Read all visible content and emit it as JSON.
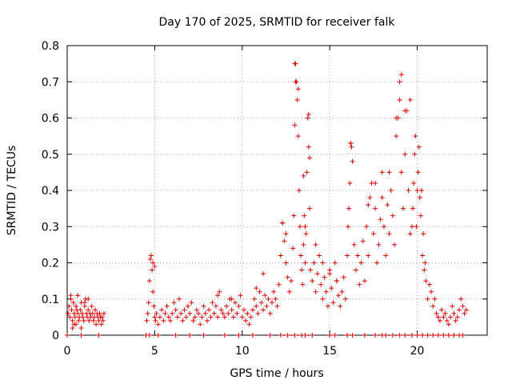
{
  "chart_data": {
    "type": "scatter",
    "title": "Day 170 of 2025, SRMTID for receiver falk",
    "xlabel": "GPS time / hours",
    "ylabel": "SRMTID / TECUs",
    "xlim": [
      0,
      24
    ],
    "ylim": [
      0,
      0.8
    ],
    "x_ticks": [
      0,
      5,
      10,
      15,
      20
    ],
    "y_ticks": [
      0,
      0.1,
      0.2,
      0.3,
      0.4,
      0.5,
      0.6,
      0.7,
      0.8
    ],
    "x_tick_labels": [
      "0",
      "5",
      "10",
      "15",
      "20"
    ],
    "y_tick_labels": [
      "0",
      "0.1",
      "0.2",
      "0.3",
      "0.4",
      "0.5",
      "0.6",
      "0.7",
      "0.8"
    ],
    "grid": true,
    "marker": "plus",
    "series_color": "#e00000",
    "series": [
      {
        "name": "SRMTID",
        "x": [
          0.05,
          0.1,
          0.15,
          0.2,
          0.25,
          0.3,
          0.35,
          0.4,
          0.45,
          0.5,
          0.55,
          0.6,
          0.65,
          0.7,
          0.75,
          0.8,
          0.85,
          0.9,
          0.95,
          1.0,
          1.05,
          1.1,
          1.15,
          1.2,
          1.25,
          1.3,
          1.35,
          1.4,
          1.45,
          1.5,
          1.55,
          1.6,
          1.65,
          1.7,
          1.75,
          1.8,
          1.85,
          1.9,
          1.95,
          2.0,
          2.05,
          2.1,
          0.2,
          0.4,
          0.6,
          0.8,
          1.0,
          1.2,
          0.3,
          0.5,
          4.55,
          4.6,
          4.65,
          4.7,
          4.75,
          4.8,
          4.85,
          4.9,
          4.95,
          5.0,
          5.05,
          5.1,
          5.2,
          5.3,
          5.4,
          5.5,
          5.6,
          5.7,
          5.8,
          5.9,
          6.0,
          6.1,
          6.2,
          6.3,
          6.4,
          6.5,
          6.6,
          6.7,
          6.8,
          6.9,
          7.0,
          7.1,
          7.2,
          7.3,
          7.4,
          7.5,
          7.6,
          7.7,
          7.8,
          7.9,
          8.0,
          8.1,
          8.2,
          8.3,
          8.4,
          8.5,
          8.6,
          8.7,
          8.8,
          8.9,
          9.0,
          9.1,
          9.2,
          9.3,
          9.4,
          9.5,
          9.6,
          9.7,
          9.8,
          9.9,
          10.0,
          10.1,
          10.2,
          10.3,
          10.4,
          10.5,
          10.6,
          10.7,
          10.8,
          10.9,
          11.0,
          11.1,
          11.2,
          11.3,
          11.4,
          11.5,
          11.6,
          11.7,
          11.8,
          11.9,
          12.0,
          12.1,
          12.2,
          12.3,
          12.4,
          12.5,
          12.6,
          12.7,
          12.8,
          12.9,
          12.95,
          13.0,
          13.05,
          13.1,
          13.15,
          13.2,
          13.25,
          13.3,
          13.35,
          13.4,
          13.45,
          13.5,
          13.55,
          13.6,
          13.65,
          13.7,
          13.75,
          13.8,
          13.85,
          13.9,
          14.0,
          14.1,
          14.2,
          14.3,
          14.4,
          14.5,
          14.6,
          14.7,
          14.8,
          14.9,
          15.0,
          15.1,
          15.2,
          15.3,
          15.4,
          15.5,
          15.6,
          15.7,
          15.8,
          15.9,
          16.0,
          16.05,
          16.1,
          16.15,
          16.2,
          16.3,
          16.4,
          16.5,
          16.6,
          16.7,
          16.8,
          16.9,
          17.0,
          17.1,
          17.2,
          17.3,
          17.4,
          17.5,
          17.6,
          17.7,
          17.8,
          17.9,
          18.0,
          18.1,
          18.2,
          18.3,
          18.4,
          18.5,
          18.6,
          18.7,
          18.8,
          18.9,
          19.0,
          19.1,
          19.2,
          19.3,
          19.4,
          19.5,
          19.6,
          19.7,
          19.75,
          19.8,
          19.85,
          19.9,
          19.95,
          20.0,
          20.05,
          20.1,
          20.15,
          20.2,
          20.25,
          20.3,
          20.35,
          20.4,
          20.45,
          20.5,
          20.6,
          20.7,
          20.8,
          20.9,
          21.0,
          21.1,
          21.2,
          21.3,
          21.4,
          21.5,
          21.6,
          21.7,
          21.8,
          21.9,
          22.0,
          22.1,
          22.2,
          22.3,
          22.4,
          22.5,
          22.6,
          22.7,
          22.8,
          13.0,
          13.05,
          13.2,
          13.8,
          13.85,
          16.2,
          16.25,
          19.1,
          19.0,
          19.6,
          19.3,
          18.8,
          18.4,
          18.0,
          17.6,
          17.2,
          13.5,
          13.6,
          14.2,
          14.6,
          15.0,
          15.4,
          12.5,
          12.3,
          11.2,
          10.8,
          9.4,
          8.6,
          5.0,
          4.9,
          0.0,
          0.8,
          1.8,
          4.5,
          4.7,
          5.2,
          6.2,
          7.0,
          7.8,
          9.0,
          9.8,
          10.6,
          11.6,
          12.2,
          12.6,
          13.0,
          13.4,
          13.6,
          14.0,
          15.0,
          15.3,
          16.0,
          16.3,
          17.0,
          17.6,
          18.0,
          18.2,
          18.6,
          19.0,
          19.3,
          19.7,
          20.0,
          20.3,
          20.6,
          20.9,
          21.2,
          21.5,
          21.8,
          22.1,
          22.4,
          22.6
        ],
        "y": [
          0.06,
          0.08,
          0.05,
          0.1,
          0.07,
          0.04,
          0.09,
          0.06,
          0.05,
          0.08,
          0.07,
          0.06,
          0.04,
          0.05,
          0.07,
          0.09,
          0.06,
          0.05,
          0.04,
          0.08,
          0.1,
          0.06,
          0.05,
          0.07,
          0.04,
          0.06,
          0.05,
          0.08,
          0.06,
          0.04,
          0.05,
          0.07,
          0.03,
          0.06,
          0.05,
          0.04,
          0.06,
          0.05,
          0.03,
          0.05,
          0.04,
          0.06,
          0.11,
          0.03,
          0.11,
          0.02,
          0.09,
          0.1,
          0.02,
          0.03,
          0.04,
          0.06,
          0.09,
          0.15,
          0.21,
          0.22,
          0.18,
          0.12,
          0.08,
          0.05,
          0.04,
          0.06,
          0.03,
          0.05,
          0.07,
          0.04,
          0.06,
          0.08,
          0.05,
          0.04,
          0.06,
          0.09,
          0.07,
          0.05,
          0.1,
          0.06,
          0.04,
          0.07,
          0.05,
          0.08,
          0.06,
          0.09,
          0.04,
          0.05,
          0.07,
          0.06,
          0.03,
          0.05,
          0.08,
          0.06,
          0.04,
          0.07,
          0.05,
          0.09,
          0.06,
          0.08,
          0.05,
          0.12,
          0.07,
          0.06,
          0.05,
          0.08,
          0.06,
          0.1,
          0.07,
          0.05,
          0.09,
          0.06,
          0.08,
          0.11,
          0.05,
          0.07,
          0.04,
          0.06,
          0.03,
          0.05,
          0.07,
          0.1,
          0.08,
          0.06,
          0.12,
          0.09,
          0.07,
          0.11,
          0.08,
          0.1,
          0.06,
          0.09,
          0.12,
          0.1,
          0.08,
          0.14,
          0.22,
          0.31,
          0.26,
          0.2,
          0.16,
          0.12,
          0.15,
          0.24,
          0.33,
          0.58,
          0.75,
          0.7,
          0.65,
          0.55,
          0.4,
          0.3,
          0.22,
          0.18,
          0.14,
          0.25,
          0.33,
          0.2,
          0.28,
          0.45,
          0.6,
          0.52,
          0.35,
          0.18,
          0.15,
          0.2,
          0.12,
          0.17,
          0.22,
          0.14,
          0.1,
          0.16,
          0.12,
          0.08,
          0.18,
          0.13,
          0.09,
          0.2,
          0.15,
          0.11,
          0.08,
          0.12,
          0.16,
          0.1,
          0.22,
          0.3,
          0.35,
          0.42,
          0.53,
          0.48,
          0.25,
          0.18,
          0.22,
          0.14,
          0.2,
          0.26,
          0.15,
          0.3,
          0.22,
          0.38,
          0.42,
          0.28,
          0.35,
          0.2,
          0.25,
          0.32,
          0.45,
          0.3,
          0.22,
          0.36,
          0.28,
          0.4,
          0.33,
          0.25,
          0.55,
          0.6,
          0.7,
          0.45,
          0.35,
          0.5,
          0.62,
          0.4,
          0.28,
          0.3,
          0.35,
          0.42,
          0.5,
          0.55,
          0.3,
          0.4,
          0.45,
          0.52,
          0.38,
          0.33,
          0.4,
          0.22,
          0.28,
          0.18,
          0.2,
          0.15,
          0.1,
          0.14,
          0.12,
          0.08,
          0.1,
          0.06,
          0.05,
          0.04,
          0.07,
          0.05,
          0.06,
          0.04,
          0.03,
          0.05,
          0.08,
          0.06,
          0.04,
          0.05,
          0.07,
          0.1,
          0.08,
          0.06,
          0.07,
          0.75,
          0.7,
          0.68,
          0.61,
          0.49,
          0.53,
          0.52,
          0.72,
          0.65,
          0.65,
          0.62,
          0.6,
          0.45,
          0.38,
          0.42,
          0.36,
          0.44,
          0.3,
          0.25,
          0.2,
          0.17,
          0.15,
          0.28,
          0.31,
          0.17,
          0.13,
          0.1,
          0.11,
          0.19,
          0.2,
          0.0,
          0.0,
          0.0,
          0.0,
          0.0,
          0.0,
          0.0,
          0.0,
          0.0,
          0.0,
          0.0,
          0.0,
          0.0,
          0.0,
          0.0,
          0.0,
          0.0,
          0.0,
          0.0,
          0.0,
          0.0,
          0.0,
          0.0,
          0.0,
          0.0,
          0.0,
          0.0,
          0.0,
          0.0,
          0.0,
          0.0,
          0.0,
          0.0,
          0.0,
          0.0,
          0.0,
          0.0,
          0.0,
          0.0,
          0.0,
          0.0
        ]
      }
    ]
  }
}
